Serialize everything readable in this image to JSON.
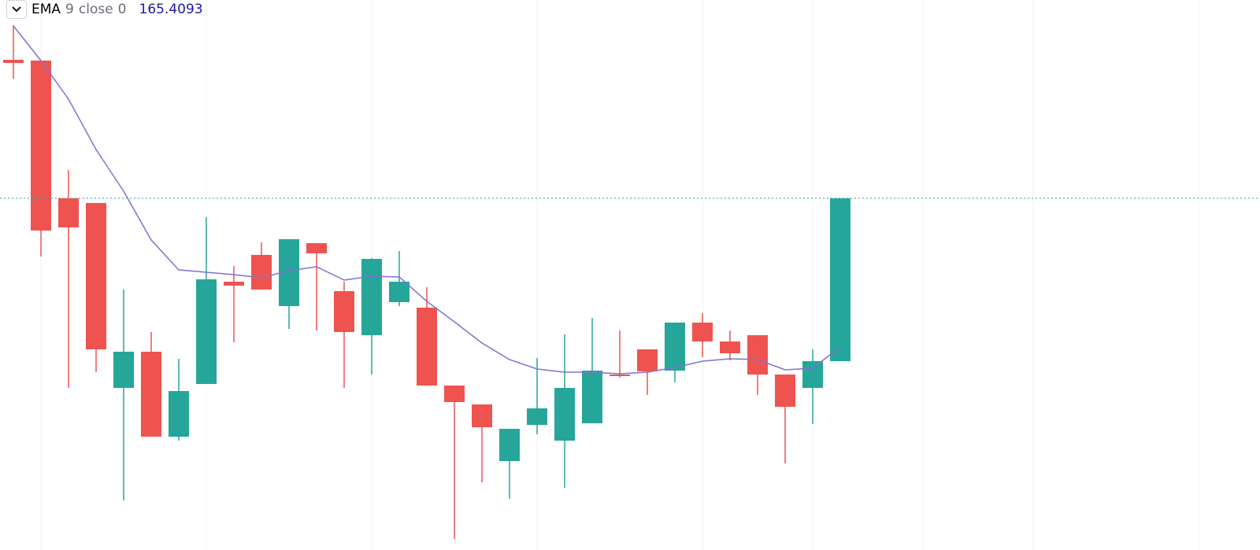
{
  "chart_data": {
    "type": "candlestick",
    "up_color": "#26a69a",
    "down_color": "#ef5350",
    "ylim": [
      152.5,
      187.45
    ],
    "open": [
      183.65,
      183.6,
      174.85,
      174.55,
      162.8,
      165.1,
      159.7,
      163.05,
      169.55,
      171.25,
      168.0,
      172.0,
      168.95,
      166.15,
      168.25,
      167.9,
      162.95,
      161.75,
      158.15,
      160.45,
      159.45,
      160.55,
      163.65,
      165.25,
      163.9,
      166.95,
      165.75,
      166.15,
      163.65,
      162.8,
      164.5
    ],
    "high": [
      185.85,
      183.6,
      176.65,
      174.55,
      169.05,
      166.35,
      164.65,
      173.65,
      170.55,
      172.05,
      172.25,
      172.0,
      169.55,
      171.05,
      171.5,
      169.2,
      162.95,
      161.75,
      160.2,
      164.7,
      166.2,
      167.25,
      166.45,
      165.25,
      166.95,
      167.55,
      166.45,
      166.15,
      163.65,
      165.25,
      174.85
    ],
    "low": [
      182.45,
      171.15,
      162.8,
      163.8,
      155.65,
      159.7,
      159.45,
      163.05,
      165.7,
      169.05,
      166.55,
      166.45,
      162.8,
      163.65,
      168.0,
      162.95,
      153.2,
      156.8,
      155.75,
      159.85,
      156.45,
      160.55,
      163.45,
      162.35,
      163.15,
      164.75,
      164.55,
      162.35,
      158.0,
      160.5,
      164.5
    ],
    "close": [
      183.45,
      172.8,
      173.0,
      165.25,
      165.1,
      159.7,
      162.6,
      169.7,
      169.3,
      169.05,
      172.25,
      171.35,
      166.35,
      171.0,
      169.55,
      162.95,
      161.9,
      160.3,
      160.2,
      161.5,
      162.8,
      163.9,
      163.55,
      163.85,
      166.95,
      165.75,
      165.0,
      163.65,
      161.6,
      164.5,
      174.85
    ],
    "last_price_line": true,
    "indicator": {
      "name": "EMA",
      "length": 9,
      "source": "close",
      "offset": 0,
      "color": "#7e72d0",
      "label_color": "#1a1aa6",
      "values": [
        185.8,
        183.6,
        181.15,
        177.95,
        175.3,
        172.2,
        170.3,
        170.15,
        170.0,
        169.8,
        170.25,
        170.5,
        169.65,
        169.9,
        169.85,
        168.3,
        167.0,
        165.65,
        164.6,
        164.0,
        163.8,
        163.8,
        163.7,
        163.8,
        164.1,
        164.5,
        164.65,
        164.6,
        163.95,
        164.05,
        165.4093
      ]
    }
  }
}
